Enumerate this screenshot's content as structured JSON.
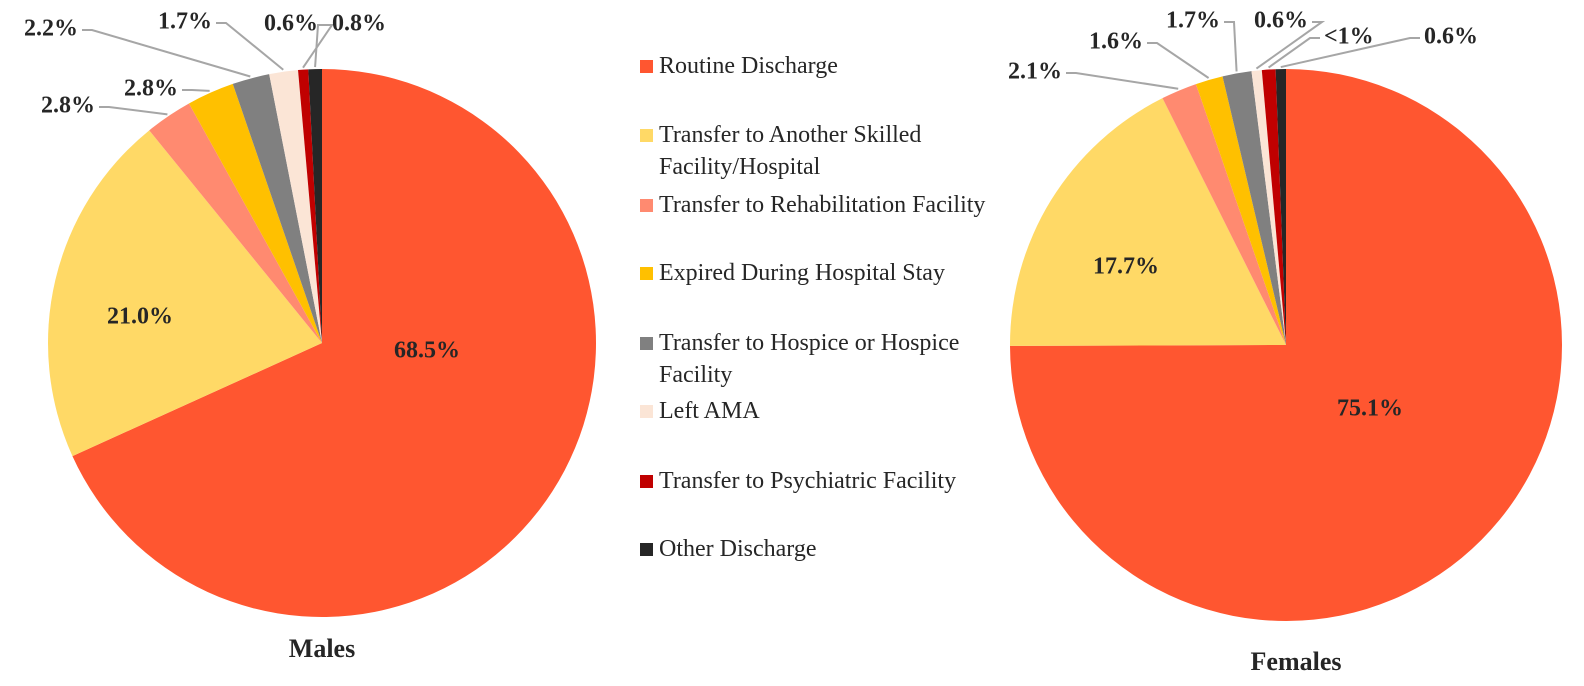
{
  "chart_data": [
    {
      "type": "pie",
      "title": "Males",
      "categories": [
        "Routine Discharge",
        "Transfer to Another Skilled Facility/Hospital",
        "Transfer to Rehabilitation Facility",
        "Expired During Hospital Stay",
        "Transfer to Hospice or Hospice Facility",
        "Left AMA",
        "Transfer to Psychiatric Facility",
        "Other Discharge"
      ],
      "colors": [
        "#ff5630",
        "#ffd966",
        "#ff8a70",
        "#ffc000",
        "#808080",
        "#fbe5d6",
        "#c00000",
        "#262626"
      ],
      "values": [
        68.5,
        21.0,
        2.8,
        2.8,
        2.2,
        1.7,
        0.6,
        0.8
      ],
      "value_labels": [
        "68.5%",
        "21.0%",
        "2.8%",
        "2.8%",
        "2.2%",
        "1.7%",
        "0.6%",
        "0.8%"
      ]
    },
    {
      "type": "pie",
      "title": "Females",
      "values": [
        75.1,
        17.7,
        2.1,
        1.6,
        1.7,
        0.6,
        0.8,
        0.6
      ],
      "value_labels": [
        "75.1%",
        "17.7%",
        "2.1%",
        "1.6%",
        "1.7%",
        "0.6%",
        "<1%",
        "0.6%"
      ]
    }
  ]
}
